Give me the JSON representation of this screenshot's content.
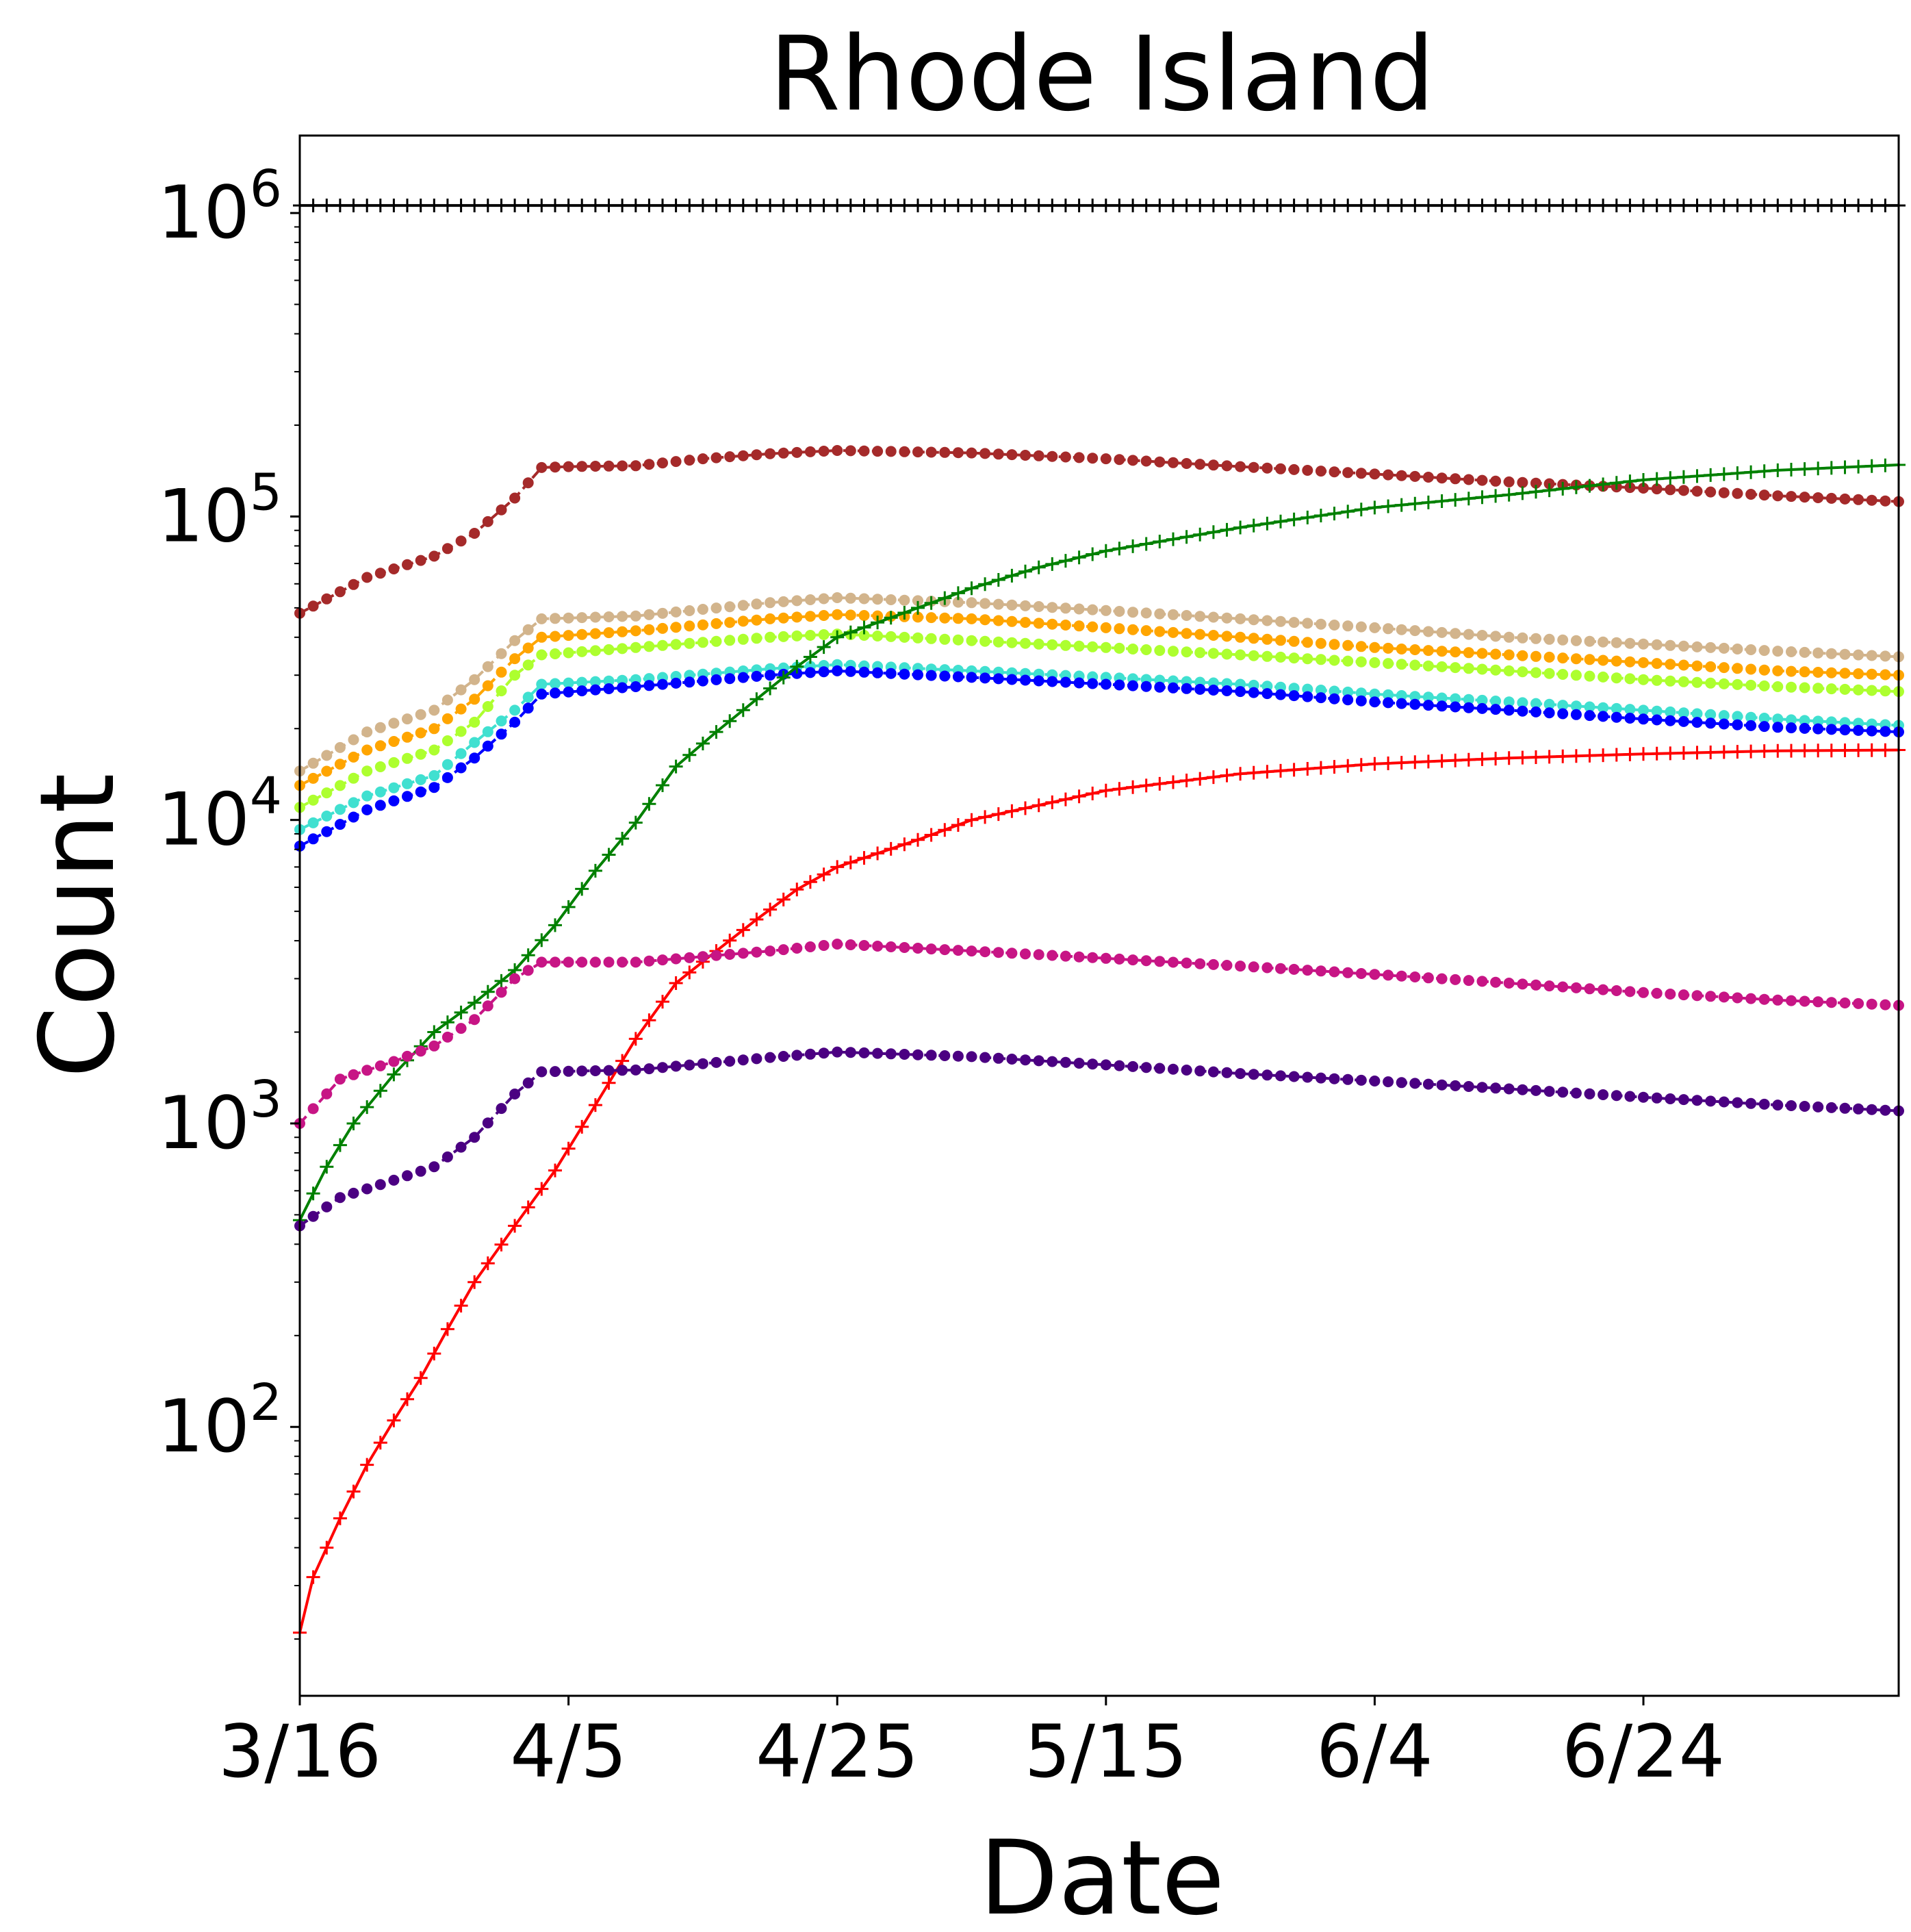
{
  "chart_data": {
    "type": "line",
    "title": "Rhode Island",
    "xlabel": "Date",
    "ylabel": "Count",
    "x_start": "3/16",
    "x_end": "7/13",
    "x_ticks": [
      "3/16",
      "4/5",
      "4/25",
      "5/15",
      "6/4",
      "6/24"
    ],
    "y_scale": "log",
    "ylim": [
      13,
      1800000
    ],
    "y_ticks": [
      {
        "value": 100,
        "base": "10",
        "exp": "2"
      },
      {
        "value": 1000,
        "base": "10",
        "exp": "3"
      },
      {
        "value": 10000,
        "base": "10",
        "exp": "4"
      },
      {
        "value": 100000,
        "base": "10",
        "exp": "5"
      },
      {
        "value": 1000000,
        "base": "10",
        "exp": "6"
      }
    ],
    "grid": false,
    "legend": "none",
    "series": [
      {
        "color": "#000000",
        "marker": "plus",
        "dashed": false,
        "points": [
          [
            "3/16",
            1059000
          ],
          [
            "7/13",
            1059000
          ]
        ]
      },
      {
        "color": "#a52a2a",
        "marker": "dot",
        "dashed": true,
        "points": [
          [
            "3/16",
            48000
          ],
          [
            "3/21",
            63000
          ],
          [
            "3/26",
            74000
          ],
          [
            "3/29",
            88000
          ],
          [
            "4/1",
            115000
          ],
          [
            "4/3",
            145000
          ],
          [
            "4/5",
            146000
          ],
          [
            "4/10",
            147000
          ],
          [
            "4/15",
            155000
          ],
          [
            "4/20",
            161000
          ],
          [
            "4/25",
            165000
          ],
          [
            "5/5",
            162000
          ],
          [
            "5/15",
            155000
          ],
          [
            "5/25",
            146000
          ],
          [
            "6/4",
            138000
          ],
          [
            "6/14",
            130000
          ],
          [
            "6/24",
            124000
          ],
          [
            "7/4",
            117000
          ],
          [
            "7/13",
            112000
          ]
        ]
      },
      {
        "color": "#d2b48c",
        "marker": "dot",
        "dashed": true,
        "points": [
          [
            "3/16",
            14500
          ],
          [
            "3/21",
            19500
          ],
          [
            "3/26",
            23000
          ],
          [
            "3/29",
            29000
          ],
          [
            "4/1",
            39000
          ],
          [
            "4/3",
            46000
          ],
          [
            "4/10",
            47000
          ],
          [
            "4/20",
            52000
          ],
          [
            "4/25",
            54000
          ],
          [
            "5/5",
            52000
          ],
          [
            "5/15",
            49000
          ],
          [
            "5/25",
            46000
          ],
          [
            "6/4",
            43000
          ],
          [
            "6/14",
            40000
          ],
          [
            "6/24",
            38000
          ],
          [
            "7/4",
            36000
          ],
          [
            "7/13",
            34500
          ]
        ]
      },
      {
        "color": "#ffa500",
        "marker": "dot",
        "dashed": true,
        "points": [
          [
            "3/16",
            13000
          ],
          [
            "3/21",
            17000
          ],
          [
            "3/26",
            20000
          ],
          [
            "3/29",
            25000
          ],
          [
            "4/1",
            34000
          ],
          [
            "4/3",
            40000
          ],
          [
            "4/10",
            42000
          ],
          [
            "4/20",
            46000
          ],
          [
            "4/25",
            47500
          ],
          [
            "5/5",
            46000
          ],
          [
            "5/15",
            43000
          ],
          [
            "5/25",
            40000
          ],
          [
            "6/4",
            37000
          ],
          [
            "6/14",
            35000
          ],
          [
            "6/24",
            33000
          ],
          [
            "7/4",
            31000
          ],
          [
            "7/13",
            30000
          ]
        ]
      },
      {
        "color": "#adff2f",
        "marker": "dot",
        "dashed": true,
        "points": [
          [
            "3/16",
            11000
          ],
          [
            "3/21",
            14500
          ],
          [
            "3/26",
            17000
          ],
          [
            "3/29",
            21000
          ],
          [
            "4/1",
            30000
          ],
          [
            "4/3",
            35000
          ],
          [
            "4/10",
            37000
          ],
          [
            "4/20",
            40000
          ],
          [
            "4/25",
            41000
          ],
          [
            "5/5",
            39000
          ],
          [
            "5/15",
            37000
          ],
          [
            "5/25",
            35000
          ],
          [
            "6/4",
            33000
          ],
          [
            "6/14",
            31000
          ],
          [
            "6/24",
            29000
          ],
          [
            "7/4",
            27500
          ],
          [
            "7/13",
            26500
          ]
        ]
      },
      {
        "color": "#40e0d0",
        "marker": "dot",
        "dashed": true,
        "points": [
          [
            "3/16",
            9300
          ],
          [
            "3/21",
            12000
          ],
          [
            "3/26",
            14000
          ],
          [
            "3/29",
            18000
          ],
          [
            "4/1",
            23000
          ],
          [
            "4/3",
            28000
          ],
          [
            "4/10",
            29000
          ],
          [
            "4/20",
            31500
          ],
          [
            "4/25",
            32500
          ],
          [
            "5/5",
            31000
          ],
          [
            "5/15",
            29500
          ],
          [
            "5/25",
            28000
          ],
          [
            "6/4",
            26000
          ],
          [
            "6/14",
            24500
          ],
          [
            "6/24",
            23000
          ],
          [
            "7/4",
            21500
          ],
          [
            "7/13",
            20500
          ]
        ]
      },
      {
        "color": "#0000ff",
        "marker": "dot",
        "dashed": true,
        "points": [
          [
            "3/16",
            8200
          ],
          [
            "3/21",
            10800
          ],
          [
            "3/26",
            12800
          ],
          [
            "3/29",
            16000
          ],
          [
            "4/1",
            21000
          ],
          [
            "4/3",
            26000
          ],
          [
            "4/10",
            27500
          ],
          [
            "4/20",
            30000
          ],
          [
            "4/25",
            31000
          ],
          [
            "5/5",
            29500
          ],
          [
            "5/15",
            28000
          ],
          [
            "5/25",
            26500
          ],
          [
            "6/4",
            24500
          ],
          [
            "6/14",
            23000
          ],
          [
            "6/24",
            21500
          ],
          [
            "7/4",
            20200
          ],
          [
            "7/13",
            19500
          ]
        ]
      },
      {
        "color": "#008000",
        "marker": "plus",
        "dashed": false,
        "points": [
          [
            "3/16",
            480
          ],
          [
            "3/18",
            720
          ],
          [
            "3/20",
            1000
          ],
          [
            "3/23",
            1450
          ],
          [
            "3/26",
            2000
          ],
          [
            "3/29",
            2500
          ],
          [
            "4/1",
            3200
          ],
          [
            "4/4",
            4500
          ],
          [
            "4/7",
            6800
          ],
          [
            "4/10",
            9800
          ],
          [
            "4/13",
            15000
          ],
          [
            "4/16",
            19500
          ],
          [
            "4/19",
            25000
          ],
          [
            "4/22",
            32000
          ],
          [
            "4/25",
            40000
          ],
          [
            "5/1",
            50000
          ],
          [
            "5/5",
            58000
          ],
          [
            "5/10",
            68000
          ],
          [
            "5/15",
            77000
          ],
          [
            "5/25",
            92000
          ],
          [
            "6/4",
            107000
          ],
          [
            "6/14",
            118000
          ],
          [
            "6/24",
            132000
          ],
          [
            "7/4",
            142000
          ],
          [
            "7/13",
            148000
          ]
        ]
      },
      {
        "color": "#ff0000",
        "marker": "plus",
        "dashed": false,
        "points": [
          [
            "3/16",
            21
          ],
          [
            "3/17",
            32
          ],
          [
            "3/19",
            50
          ],
          [
            "3/21",
            75
          ],
          [
            "3/23",
            105
          ],
          [
            "3/25",
            145
          ],
          [
            "3/27",
            210
          ],
          [
            "3/29",
            300
          ],
          [
            "4/1",
            460
          ],
          [
            "4/4",
            700
          ],
          [
            "4/7",
            1150
          ],
          [
            "4/10",
            1900
          ],
          [
            "4/13",
            2900
          ],
          [
            "4/16",
            3700
          ],
          [
            "4/19",
            4700
          ],
          [
            "4/22",
            5900
          ],
          [
            "4/25",
            7000
          ],
          [
            "5/1",
            8600
          ],
          [
            "5/5",
            10000
          ],
          [
            "5/15",
            12500
          ],
          [
            "5/25",
            14200
          ],
          [
            "6/4",
            15300
          ],
          [
            "6/14",
            16000
          ],
          [
            "6/24",
            16500
          ],
          [
            "7/4",
            16900
          ],
          [
            "7/13",
            17000
          ]
        ]
      },
      {
        "color": "#c71585",
        "marker": "dot",
        "dashed": true,
        "points": [
          [
            "3/16",
            1000
          ],
          [
            "3/19",
            1400
          ],
          [
            "3/23",
            1600
          ],
          [
            "3/26",
            1800
          ],
          [
            "3/29",
            2200
          ],
          [
            "4/1",
            3000
          ],
          [
            "4/3",
            3400
          ],
          [
            "4/10",
            3400
          ],
          [
            "4/20",
            3700
          ],
          [
            "4/25",
            3900
          ],
          [
            "5/5",
            3700
          ],
          [
            "5/15",
            3500
          ],
          [
            "5/25",
            3300
          ],
          [
            "6/4",
            3100
          ],
          [
            "6/14",
            2900
          ],
          [
            "6/24",
            2700
          ],
          [
            "7/4",
            2550
          ],
          [
            "7/13",
            2450
          ]
        ]
      },
      {
        "color": "#4b0082",
        "marker": "dot",
        "dashed": true,
        "points": [
          [
            "3/16",
            460
          ],
          [
            "3/19",
            570
          ],
          [
            "3/23",
            650
          ],
          [
            "3/26",
            720
          ],
          [
            "3/29",
            900
          ],
          [
            "4/1",
            1250
          ],
          [
            "4/3",
            1480
          ],
          [
            "4/10",
            1500
          ],
          [
            "4/20",
            1650
          ],
          [
            "4/25",
            1720
          ],
          [
            "5/5",
            1660
          ],
          [
            "5/15",
            1560
          ],
          [
            "5/25",
            1460
          ],
          [
            "6/4",
            1380
          ],
          [
            "6/14",
            1300
          ],
          [
            "6/24",
            1220
          ],
          [
            "7/4",
            1150
          ],
          [
            "7/13",
            1100
          ]
        ]
      }
    ]
  }
}
